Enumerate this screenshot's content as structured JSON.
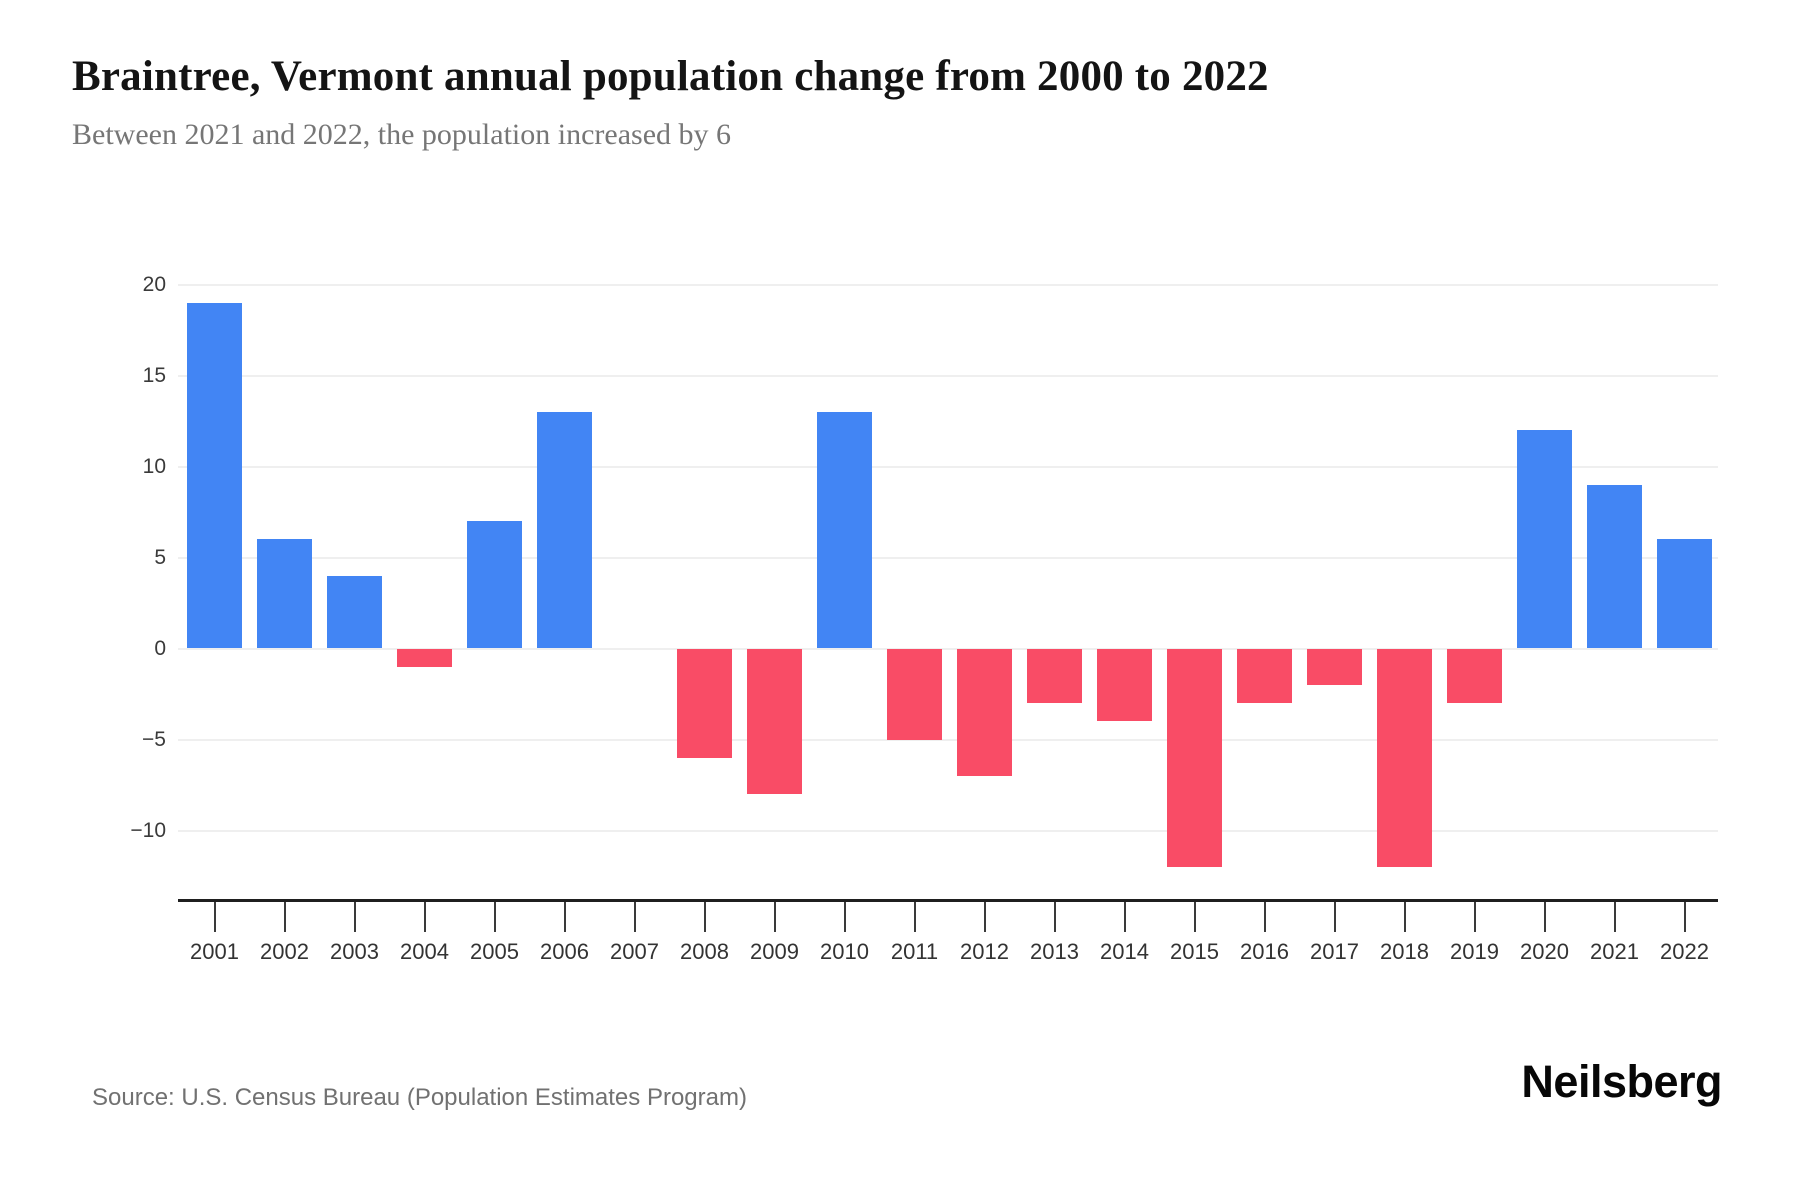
{
  "page": {
    "source": "Source: U.S. Census Bureau (Population Estimates Program)",
    "brand": "Neilsberg"
  },
  "chart_data": {
    "type": "bar",
    "title": "Braintree, Vermont annual population change from 2000 to 2022",
    "subtitle": "Between 2021 and 2022, the population increased by 6",
    "categories": [
      "2001",
      "2002",
      "2003",
      "2004",
      "2005",
      "2006",
      "2007",
      "2008",
      "2009",
      "2010",
      "2011",
      "2012",
      "2013",
      "2014",
      "2015",
      "2016",
      "2017",
      "2018",
      "2019",
      "2020",
      "2021",
      "2022"
    ],
    "values": [
      19,
      6,
      4,
      -1,
      7,
      13,
      0,
      -6,
      -8,
      13,
      -5,
      -7,
      -3,
      -4,
      -12,
      -3,
      -2,
      -12,
      -3,
      12,
      9,
      6
    ],
    "series_name": "Annual population change",
    "xlabel": "",
    "ylabel": "",
    "ylim": [
      -14,
      20
    ],
    "yticks": [
      {
        "value": 20,
        "label": "20"
      },
      {
        "value": 15,
        "label": "15"
      },
      {
        "value": 10,
        "label": "10"
      },
      {
        "value": 5,
        "label": "5"
      },
      {
        "value": 0,
        "label": "0"
      },
      {
        "value": -5,
        "label": "−5"
      },
      {
        "value": -10,
        "label": "−10"
      }
    ],
    "grid": true,
    "legend_position": "none",
    "colors": {
      "positive": "#4285f4",
      "negative": "#f94c66"
    }
  }
}
